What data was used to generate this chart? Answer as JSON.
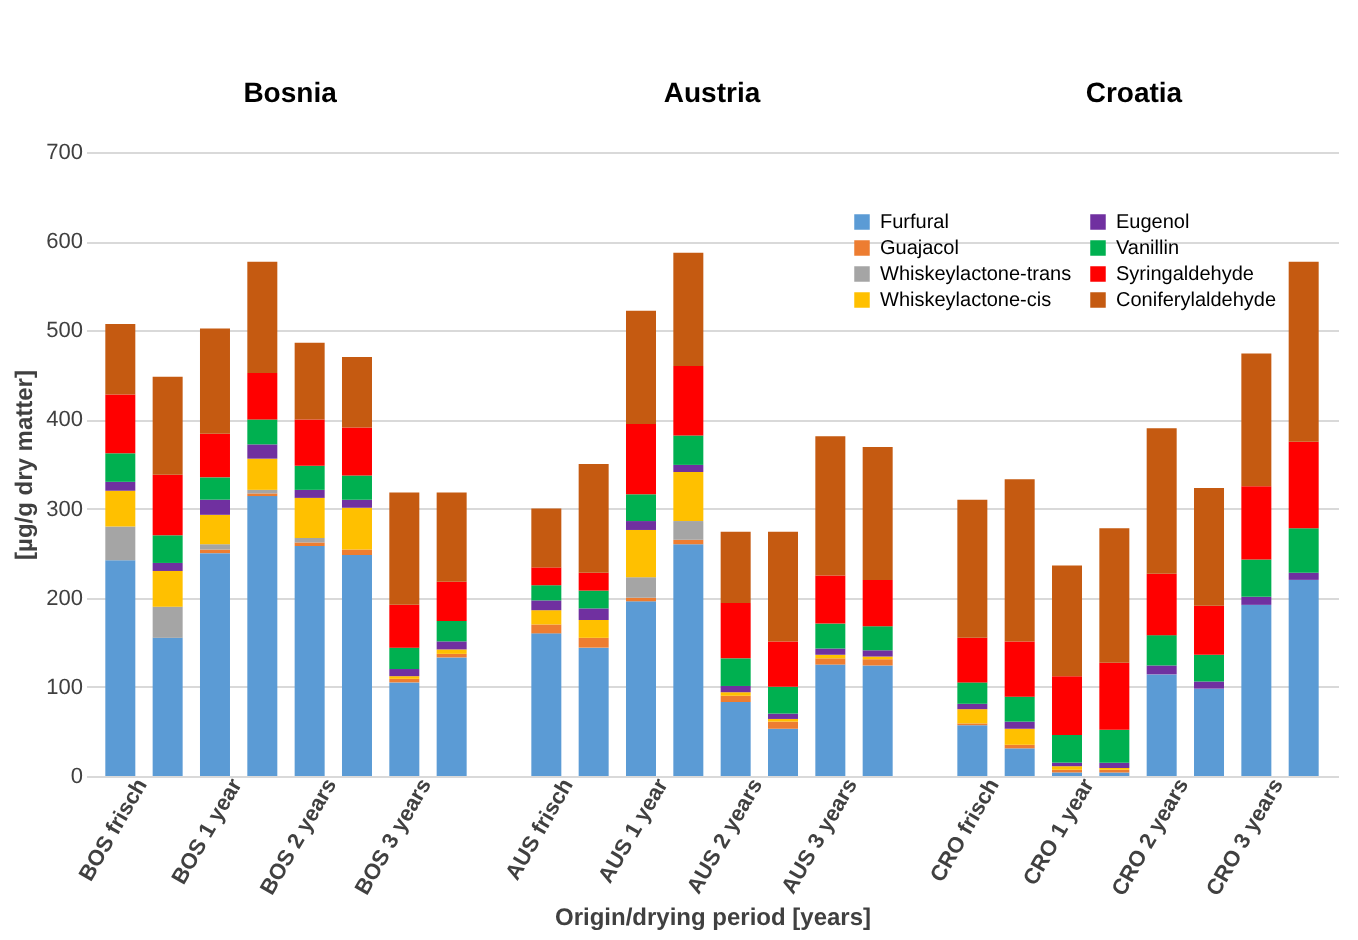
{
  "chart_data": {
    "type": "bar",
    "stacked": true,
    "xlabel": "Origin/drying period [years]",
    "ylabel": "[µg/g dry matter]",
    "categories": [
      "BOS frisch",
      null,
      "BOS 1 year",
      null,
      "BOS 2 years",
      null,
      "BOS 3 years",
      null,
      null,
      "AUS frisch",
      null,
      "AUS 1 year",
      null,
      "AUS 2 years",
      null,
      "AUS 3 years",
      null,
      null,
      "CRO frisch",
      null,
      "CRO 1 year",
      null,
      "CRO 2 years",
      null,
      "CRO 3 years",
      null
    ],
    "series": [
      {
        "name": "Furfural",
        "color": "#5b9bd5",
        "values": [
          242,
          155,
          250,
          314,
          258,
          248,
          105,
          133,
          null,
          160,
          144,
          196,
          260,
          83,
          53,
          125,
          124,
          null,
          57,
          31,
          4,
          4,
          114,
          98,
          192,
          220
        ]
      },
      {
        "name": "Guajacol",
        "color": "#ed7d31",
        "values": [
          0,
          0,
          4,
          3,
          4,
          6,
          4,
          4,
          null,
          10,
          11,
          4,
          5,
          7,
          8,
          7,
          7,
          null,
          2,
          4,
          3,
          3,
          0,
          0,
          0,
          0
        ]
      },
      {
        "name": "Whiskeylactone-trans",
        "color": "#a5a5a5",
        "values": [
          38,
          35,
          6,
          4,
          5,
          0,
          0,
          0,
          null,
          0,
          0,
          23,
          21,
          0,
          0,
          0,
          0,
          null,
          0,
          0,
          0,
          0,
          0,
          0,
          0,
          0
        ]
      },
      {
        "name": "Whiskeylactone-cis",
        "color": "#ffc000",
        "values": [
          40,
          40,
          33,
          35,
          45,
          47,
          3,
          5,
          null,
          16,
          20,
          53,
          55,
          4,
          3,
          4,
          3,
          null,
          16,
          18,
          4,
          2,
          0,
          0,
          0,
          0
        ]
      },
      {
        "name": "Eugenol",
        "color": "#7030a0",
        "values": [
          10,
          9,
          17,
          16,
          9,
          9,
          8,
          9,
          null,
          11,
          13,
          10,
          8,
          7,
          6,
          7,
          7,
          null,
          6,
          8,
          4,
          6,
          10,
          8,
          9,
          8
        ]
      },
      {
        "name": "Vanillin",
        "color": "#00b050",
        "values": [
          32,
          31,
          25,
          28,
          27,
          27,
          24,
          23,
          null,
          17,
          20,
          30,
          33,
          31,
          30,
          28,
          27,
          null,
          24,
          28,
          31,
          37,
          34,
          30,
          42,
          50
        ]
      },
      {
        "name": "Syringaldehyde",
        "color": "#ff0000",
        "values": [
          66,
          68,
          49,
          52,
          52,
          54,
          48,
          44,
          null,
          20,
          20,
          79,
          78,
          62,
          51,
          54,
          52,
          null,
          50,
          62,
          66,
          75,
          69,
          55,
          82,
          97
        ]
      },
      {
        "name": "Coniferylaldehyde",
        "color": "#c55a11",
        "values": [
          79,
          110,
          118,
          125,
          86,
          79,
          126,
          100,
          null,
          66,
          122,
          127,
          127,
          80,
          123,
          156,
          149,
          null,
          155,
          182,
          124,
          151,
          163,
          132,
          149,
          202
        ]
      }
    ],
    "ylim": [
      0,
      700
    ],
    "yticks": [
      0,
      100,
      200,
      300,
      400,
      500,
      600,
      700
    ],
    "grid": "y",
    "legend": "top right",
    "annotations": [
      "Bosnia",
      "Austria",
      "Croatia"
    ]
  }
}
